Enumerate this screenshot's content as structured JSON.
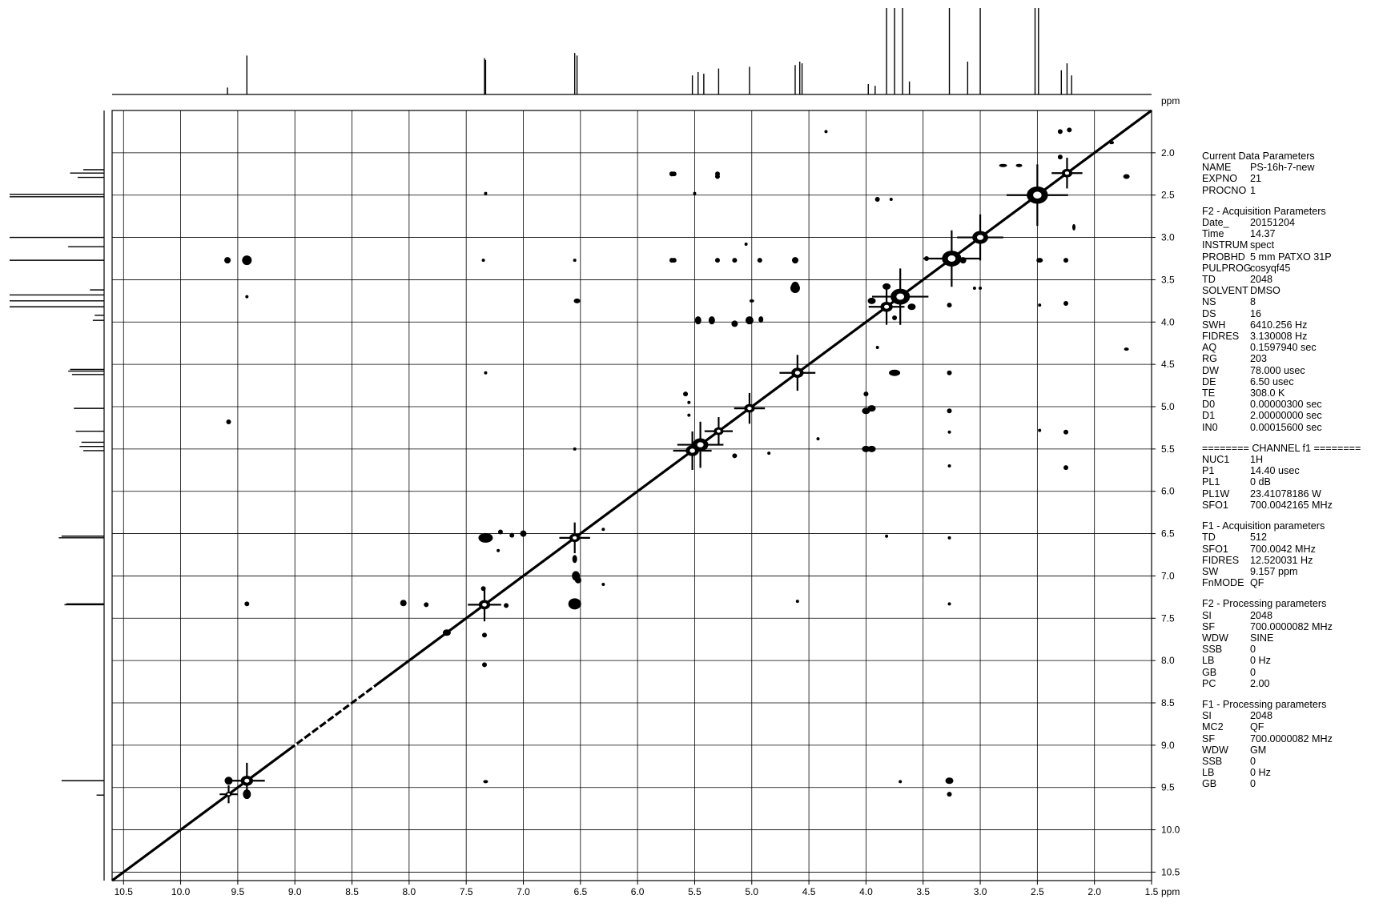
{
  "chart_data": {
    "type": "contour",
    "title": "",
    "f2_axis": {
      "unit": "ppm",
      "range": [
        10.6,
        1.5
      ],
      "ticks": [
        "10.5",
        "10.0",
        "9.5",
        "9.0",
        "8.5",
        "8.0",
        "7.5",
        "7.0",
        "6.5",
        "6.0",
        "5.5",
        "5.0",
        "4.5",
        "4.0",
        "3.5",
        "3.0",
        "2.5",
        "2.0",
        "1.5"
      ],
      "tick_values": [
        10.5,
        10.0,
        9.5,
        9.0,
        8.5,
        8.0,
        7.5,
        7.0,
        6.5,
        6.0,
        5.5,
        5.0,
        4.5,
        4.0,
        3.5,
        3.0,
        2.5,
        2.0,
        1.5
      ]
    },
    "f1_axis": {
      "unit": "ppm",
      "range": [
        1.5,
        10.6
      ],
      "ticks": [
        "2.0",
        "2.5",
        "3.0",
        "3.5",
        "4.0",
        "4.5",
        "5.0",
        "5.5",
        "6.0",
        "6.5",
        "7.0",
        "7.5",
        "8.0",
        "8.5",
        "9.0",
        "9.5",
        "10.0",
        "10.5"
      ],
      "tick_values": [
        2.0,
        2.5,
        3.0,
        3.5,
        4.0,
        4.5,
        5.0,
        5.5,
        6.0,
        6.5,
        7.0,
        7.5,
        8.0,
        8.5,
        9.0,
        9.5,
        10.0,
        10.5
      ]
    },
    "grid": true,
    "projection_peaks": [
      {
        "ppm": 9.59,
        "h": 0.08
      },
      {
        "ppm": 9.42,
        "h": 0.45
      },
      {
        "ppm": 7.34,
        "h": 0.42
      },
      {
        "ppm": 7.33,
        "h": 0.4
      },
      {
        "ppm": 6.55,
        "h": 0.48
      },
      {
        "ppm": 6.53,
        "h": 0.45
      },
      {
        "ppm": 5.52,
        "h": 0.22
      },
      {
        "ppm": 5.47,
        "h": 0.26
      },
      {
        "ppm": 5.42,
        "h": 0.24
      },
      {
        "ppm": 5.29,
        "h": 0.3
      },
      {
        "ppm": 5.02,
        "h": 0.32
      },
      {
        "ppm": 4.62,
        "h": 0.34
      },
      {
        "ppm": 4.58,
        "h": 0.38
      },
      {
        "ppm": 4.56,
        "h": 0.36
      },
      {
        "ppm": 3.98,
        "h": 0.12
      },
      {
        "ppm": 3.92,
        "h": 0.1
      },
      {
        "ppm": 3.82,
        "h": 1.0
      },
      {
        "ppm": 3.75,
        "h": 1.0
      },
      {
        "ppm": 3.68,
        "h": 1.0
      },
      {
        "ppm": 3.62,
        "h": 0.15
      },
      {
        "ppm": 3.27,
        "h": 1.0
      },
      {
        "ppm": 3.11,
        "h": 0.38
      },
      {
        "ppm": 3.0,
        "h": 1.0
      },
      {
        "ppm": 2.52,
        "h": 1.0
      },
      {
        "ppm": 2.49,
        "h": 1.0
      },
      {
        "ppm": 2.29,
        "h": 0.28
      },
      {
        "ppm": 2.24,
        "h": 0.36
      },
      {
        "ppm": 2.2,
        "h": 0.22
      }
    ],
    "diagonal_peaks": [
      {
        "ppm": 9.58,
        "s": 7
      },
      {
        "ppm": 9.42,
        "s": 14
      },
      {
        "ppm": 7.34,
        "s": 13
      },
      {
        "ppm": 6.55,
        "s": 12
      },
      {
        "ppm": 5.52,
        "s": 15
      },
      {
        "ppm": 5.45,
        "s": 18
      },
      {
        "ppm": 5.29,
        "s": 11
      },
      {
        "ppm": 5.02,
        "s": 12
      },
      {
        "ppm": 4.6,
        "s": 14
      },
      {
        "ppm": 3.82,
        "s": 14
      },
      {
        "ppm": 3.7,
        "s": 22
      },
      {
        "ppm": 3.25,
        "s": 22
      },
      {
        "ppm": 3.0,
        "s": 18
      },
      {
        "ppm": 2.5,
        "s": 24
      },
      {
        "ppm": 2.24,
        "s": 12
      }
    ],
    "cross_peaks": [
      {
        "f2": 9.42,
        "f1": 9.58,
        "w": 5,
        "h": 6
      },
      {
        "f2": 9.58,
        "f1": 9.42,
        "w": 5,
        "h": 5
      },
      {
        "f2": 9.42,
        "f1": 3.27,
        "w": 6,
        "h": 6
      },
      {
        "f2": 9.59,
        "f1": 3.27,
        "w": 4,
        "h": 4
      },
      {
        "f2": 9.58,
        "f1": 5.18,
        "w": 3,
        "h": 3
      },
      {
        "f2": 9.42,
        "f1": 7.33,
        "w": 3,
        "h": 3
      },
      {
        "f2": 9.42,
        "f1": 3.7,
        "w": 2,
        "h": 2
      },
      {
        "f2": 7.33,
        "f1": 6.55,
        "w": 9,
        "h": 6
      },
      {
        "f2": 7.33,
        "f1": 9.43,
        "w": 3,
        "h": 2
      },
      {
        "f2": 7.34,
        "f1": 7.7,
        "w": 3,
        "h": 3
      },
      {
        "f2": 7.34,
        "f1": 8.05,
        "w": 3,
        "h": 3
      },
      {
        "f2": 7.35,
        "f1": 7.15,
        "w": 3,
        "h": 3
      },
      {
        "f2": 7.35,
        "f1": 3.27,
        "w": 2,
        "h": 2
      },
      {
        "f2": 7.33,
        "f1": 4.6,
        "w": 2,
        "h": 2
      },
      {
        "f2": 7.33,
        "f1": 2.48,
        "w": 2,
        "h": 2
      },
      {
        "f2": 6.55,
        "f1": 7.33,
        "w": 8,
        "h": 7
      },
      {
        "f2": 6.54,
        "f1": 7.0,
        "w": 5,
        "h": 6
      },
      {
        "f2": 6.52,
        "f1": 7.05,
        "w": 4,
        "h": 4
      },
      {
        "f2": 6.53,
        "f1": 3.75,
        "w": 4,
        "h": 3
      },
      {
        "f2": 6.55,
        "f1": 3.27,
        "w": 2,
        "h": 2
      },
      {
        "f2": 6.55,
        "f1": 6.8,
        "w": 3,
        "h": 5
      },
      {
        "f2": 6.55,
        "f1": 5.5,
        "w": 2,
        "h": 2
      },
      {
        "f2": 7.1,
        "f1": 6.52,
        "w": 3,
        "h": 3
      },
      {
        "f2": 7.2,
        "f1": 6.48,
        "w": 3,
        "h": 3
      },
      {
        "f2": 7.22,
        "f1": 6.7,
        "w": 2,
        "h": 2
      },
      {
        "f2": 7.15,
        "f1": 7.35,
        "w": 3,
        "h": 3
      },
      {
        "f2": 7.0,
        "f1": 6.5,
        "w": 4,
        "h": 4
      },
      {
        "f2": 6.3,
        "f1": 6.45,
        "w": 2,
        "h": 2
      },
      {
        "f2": 6.3,
        "f1": 7.1,
        "w": 2,
        "h": 2
      },
      {
        "f2": 7.67,
        "f1": 7.67,
        "w": 5,
        "h": 4
      },
      {
        "f2": 8.05,
        "f1": 7.32,
        "w": 4,
        "h": 4
      },
      {
        "f2": 7.85,
        "f1": 7.34,
        "w": 3,
        "h": 3
      },
      {
        "f2": 5.47,
        "f1": 3.98,
        "w": 4,
        "h": 5
      },
      {
        "f2": 5.35,
        "f1": 3.98,
        "w": 4,
        "h": 5
      },
      {
        "f2": 5.15,
        "f1": 4.02,
        "w": 4,
        "h": 4
      },
      {
        "f2": 5.02,
        "f1": 3.98,
        "w": 5,
        "h": 5
      },
      {
        "f2": 4.92,
        "f1": 3.97,
        "w": 3,
        "h": 4
      },
      {
        "f2": 5.3,
        "f1": 3.27,
        "w": 3,
        "h": 3
      },
      {
        "f2": 5.3,
        "f1": 2.25,
        "w": 3,
        "h": 3
      },
      {
        "f2": 5.7,
        "f1": 2.25,
        "w": 3,
        "h": 3
      },
      {
        "f2": 5.7,
        "f1": 3.27,
        "w": 3,
        "h": 3
      },
      {
        "f2": 5.5,
        "f1": 2.48,
        "w": 2,
        "h": 2
      },
      {
        "f2": 5.15,
        "f1": 3.27,
        "w": 3,
        "h": 3
      },
      {
        "f2": 4.93,
        "f1": 3.27,
        "w": 3,
        "h": 3
      },
      {
        "f2": 5.58,
        "f1": 4.85,
        "w": 3,
        "h": 3
      },
      {
        "f2": 5.15,
        "f1": 5.58,
        "w": 3,
        "h": 3
      },
      {
        "f2": 5.0,
        "f1": 3.75,
        "w": 3,
        "h": 2
      },
      {
        "f2": 4.62,
        "f1": 3.6,
        "w": 6,
        "h": 6
      },
      {
        "f2": 4.62,
        "f1": 3.27,
        "w": 4,
        "h": 4
      },
      {
        "f2": 4.6,
        "f1": 7.3,
        "w": 2,
        "h": 2
      },
      {
        "f2": 4.42,
        "f1": 5.38,
        "w": 2,
        "h": 2
      },
      {
        "f2": 4.0,
        "f1": 5.5,
        "w": 5,
        "h": 4
      },
      {
        "f2": 3.95,
        "f1": 5.5,
        "w": 5,
        "h": 4
      },
      {
        "f2": 4.0,
        "f1": 5.05,
        "w": 5,
        "h": 4
      },
      {
        "f2": 3.95,
        "f1": 5.02,
        "w": 5,
        "h": 4
      },
      {
        "f2": 4.0,
        "f1": 4.85,
        "w": 3,
        "h": 3
      },
      {
        "f2": 3.75,
        "f1": 4.6,
        "w": 7,
        "h": 4
      },
      {
        "f2": 3.95,
        "f1": 3.75,
        "w": 5,
        "h": 4
      },
      {
        "f2": 3.82,
        "f1": 3.58,
        "w": 5,
        "h": 4
      },
      {
        "f2": 3.6,
        "f1": 3.82,
        "w": 5,
        "h": 4
      },
      {
        "f2": 3.27,
        "f1": 4.6,
        "w": 3,
        "h": 3
      },
      {
        "f2": 3.27,
        "f1": 5.05,
        "w": 3,
        "h": 3
      },
      {
        "f2": 3.27,
        "f1": 5.3,
        "w": 2,
        "h": 2
      },
      {
        "f2": 3.27,
        "f1": 9.42,
        "w": 5,
        "h": 4
      },
      {
        "f2": 3.27,
        "f1": 9.58,
        "w": 3,
        "h": 3
      },
      {
        "f2": 3.27,
        "f1": 6.55,
        "w": 2,
        "h": 2
      },
      {
        "f2": 3.27,
        "f1": 7.33,
        "w": 2,
        "h": 2
      },
      {
        "f2": 3.27,
        "f1": 5.7,
        "w": 2,
        "h": 2
      },
      {
        "f2": 3.82,
        "f1": 6.53,
        "w": 2,
        "h": 2
      },
      {
        "f2": 3.7,
        "f1": 9.43,
        "w": 2,
        "h": 2
      },
      {
        "f2": 3.27,
        "f1": 3.8,
        "w": 3,
        "h": 3
      },
      {
        "f2": 2.25,
        "f1": 3.27,
        "w": 3,
        "h": 3
      },
      {
        "f2": 2.25,
        "f1": 5.3,
        "w": 3,
        "h": 3
      },
      {
        "f2": 2.25,
        "f1": 5.72,
        "w": 3,
        "h": 3
      },
      {
        "f2": 2.3,
        "f1": 2.05,
        "w": 3,
        "h": 3
      },
      {
        "f2": 2.48,
        "f1": 3.8,
        "w": 2,
        "h": 2
      },
      {
        "f2": 2.8,
        "f1": 2.15,
        "w": 5,
        "h": 2
      },
      {
        "f2": 2.66,
        "f1": 2.15,
        "w": 4,
        "h": 2
      },
      {
        "f2": 2.18,
        "f1": 2.88,
        "w": 2,
        "h": 4
      },
      {
        "f2": 1.72,
        "f1": 2.28,
        "w": 4,
        "h": 3
      },
      {
        "f2": 1.72,
        "f1": 4.32,
        "w": 3,
        "h": 2
      },
      {
        "f2": 1.85,
        "f1": 1.88,
        "w": 3,
        "h": 2
      },
      {
        "f2": 2.3,
        "f1": 1.75,
        "w": 3,
        "h": 3
      },
      {
        "f2": 2.22,
        "f1": 1.73,
        "w": 3,
        "h": 3
      },
      {
        "f2": 5.7,
        "f1": 2.25,
        "w": 3,
        "h": 3
      },
      {
        "f2": 5.3,
        "f1": 2.28,
        "w": 3,
        "h": 3
      },
      {
        "f2": 4.35,
        "f1": 1.75,
        "w": 2,
        "h": 2
      },
      {
        "f2": 3.9,
        "f1": 2.55,
        "w": 3,
        "h": 3
      },
      {
        "f2": 3.78,
        "f1": 2.55,
        "w": 2,
        "h": 2
      },
      {
        "f2": 3.15,
        "f1": 3.27,
        "w": 4,
        "h": 4
      },
      {
        "f2": 3.47,
        "f1": 3.25,
        "w": 3,
        "h": 3
      },
      {
        "f2": 3.0,
        "f1": 3.6,
        "w": 2,
        "h": 2
      },
      {
        "f2": 3.05,
        "f1": 3.6,
        "w": 2,
        "h": 2
      },
      {
        "f2": 2.48,
        "f1": 3.27,
        "w": 4,
        "h": 3
      },
      {
        "f2": 2.48,
        "f1": 5.28,
        "w": 2,
        "h": 2
      },
      {
        "f2": 2.25,
        "f1": 3.78,
        "w": 3,
        "h": 3
      },
      {
        "f2": 5.68,
        "f1": 2.25,
        "w": 3,
        "h": 3
      },
      {
        "f2": 5.68,
        "f1": 3.27,
        "w": 3,
        "h": 3
      },
      {
        "f2": 4.62,
        "f1": 3.58,
        "w": 5,
        "h": 6
      },
      {
        "f2": 4.85,
        "f1": 5.55,
        "w": 2,
        "h": 2
      },
      {
        "f2": 5.55,
        "f1": 4.95,
        "w": 2,
        "h": 2
      },
      {
        "f2": 5.55,
        "f1": 5.1,
        "w": 2,
        "h": 2
      },
      {
        "f2": 5.05,
        "f1": 3.08,
        "w": 2,
        "h": 2
      },
      {
        "f2": 3.9,
        "f1": 4.3,
        "w": 2,
        "h": 2
      },
      {
        "f2": 3.75,
        "f1": 3.95,
        "w": 3,
        "h": 3
      }
    ]
  },
  "params": [
    {
      "title": "Current Data Parameters",
      "rows": [
        {
          "k": "NAME",
          "v": "PS-16h-7-new"
        },
        {
          "k": "EXPNO",
          "v": "21"
        },
        {
          "k": "PROCNO",
          "v": "1"
        }
      ]
    },
    {
      "title": "F2 - Acquisition Parameters",
      "rows": [
        {
          "k": "Date_",
          "v": "20151204"
        },
        {
          "k": "Time",
          "v": "14.37"
        },
        {
          "k": "INSTRUM",
          "v": "spect"
        },
        {
          "k": "PROBHD",
          "v": "5 mm PATXO 31P"
        },
        {
          "k": "PULPROG",
          "v": "cosyqf45"
        },
        {
          "k": "TD",
          "v": "2048"
        },
        {
          "k": "SOLVENT",
          "v": "DMSO"
        },
        {
          "k": "NS",
          "v": "8"
        },
        {
          "k": "DS",
          "v": "16"
        },
        {
          "k": "SWH",
          "v": "6410.256 Hz"
        },
        {
          "k": "FIDRES",
          "v": "3.130008 Hz"
        },
        {
          "k": "AQ",
          "v": "0.1597940 sec"
        },
        {
          "k": "RG",
          "v": "203"
        },
        {
          "k": "DW",
          "v": "78.000 usec"
        },
        {
          "k": "DE",
          "v": "6.50 usec"
        },
        {
          "k": "TE",
          "v": "308.0 K"
        },
        {
          "k": "D0",
          "v": "0.00000300 sec"
        },
        {
          "k": "D1",
          "v": "2.00000000 sec"
        },
        {
          "k": "IN0",
          "v": "0.00015600 sec"
        }
      ]
    },
    {
      "title": "======== CHANNEL f1 ========",
      "rows": [
        {
          "k": "NUC1",
          "v": "1H"
        },
        {
          "k": "P1",
          "v": "14.40 usec"
        },
        {
          "k": "PL1",
          "v": "0 dB"
        },
        {
          "k": "PL1W",
          "v": "23.41078186 W"
        },
        {
          "k": "SFO1",
          "v": "700.0042165 MHz"
        }
      ]
    },
    {
      "title": "F1 - Acquisition parameters",
      "rows": [
        {
          "k": "TD",
          "v": "512"
        },
        {
          "k": "SFO1",
          "v": "700.0042 MHz"
        },
        {
          "k": "FIDRES",
          "v": "12.520031 Hz"
        },
        {
          "k": "SW",
          "v": "9.157 ppm"
        },
        {
          "k": "FnMODE",
          "v": "QF"
        }
      ]
    },
    {
      "title": "F2 - Processing parameters",
      "rows": [
        {
          "k": "SI",
          "v": "2048"
        },
        {
          "k": "SF",
          "v": "700.0000082 MHz"
        },
        {
          "k": "WDW",
          "v": "SINE"
        },
        {
          "k": "SSB",
          "v": "0"
        },
        {
          "k": "LB",
          "v": "0 Hz"
        },
        {
          "k": "GB",
          "v": "0"
        },
        {
          "k": "PC",
          "v": "2.00"
        }
      ]
    },
    {
      "title": "F1 - Processing parameters",
      "rows": [
        {
          "k": "SI",
          "v": "2048"
        },
        {
          "k": "MC2",
          "v": "QF"
        },
        {
          "k": "SF",
          "v": "700.0000082 MHz"
        },
        {
          "k": "WDW",
          "v": "GM"
        },
        {
          "k": "SSB",
          "v": "0"
        },
        {
          "k": "LB",
          "v": "0 Hz"
        },
        {
          "k": "GB",
          "v": "0"
        }
      ]
    }
  ]
}
